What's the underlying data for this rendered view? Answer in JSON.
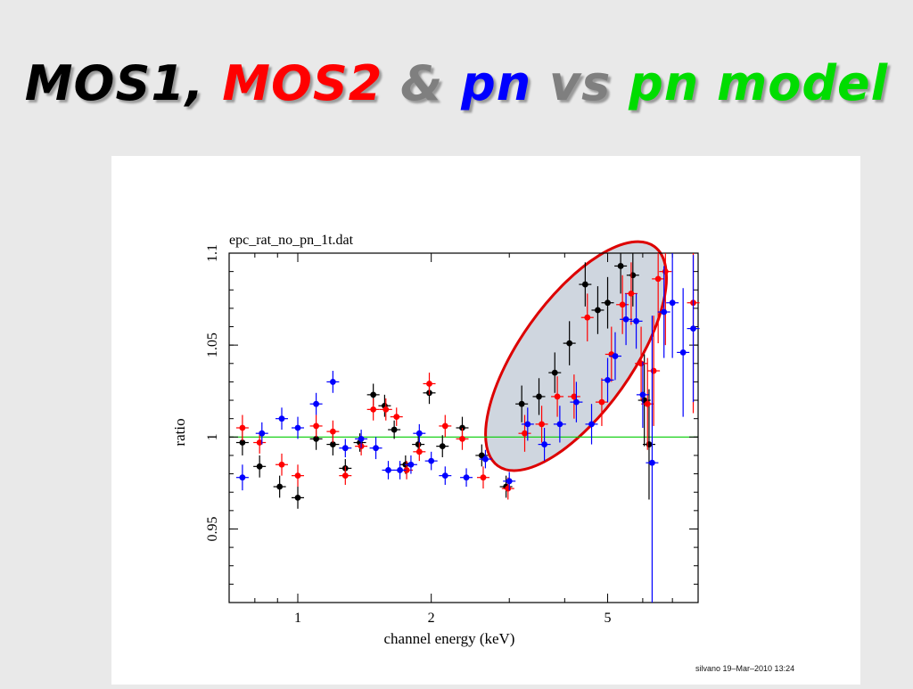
{
  "slide": {
    "title_parts": [
      {
        "text": "MOS1,",
        "color": "#000000"
      },
      {
        "text": "MOS2",
        "color": "#ff0000"
      },
      {
        "text": "&",
        "color": "#7f7f7f"
      },
      {
        "text": "pn",
        "color": "#0000ff"
      },
      {
        "text": "vs",
        "color": "#7f7f7f"
      },
      {
        "text": "pn model",
        "color": "#00dd00"
      }
    ],
    "credit": "silvano 19–Mar–2010 13:24"
  },
  "chart_data": {
    "type": "scatter",
    "title": "epc_rat_no_pn_1t.dat",
    "xlabel": "channel energy (keV)",
    "ylabel": "ratio",
    "xscale": "log",
    "xlim": [
      0.7,
      8.0
    ],
    "ylim": [
      0.91,
      1.1
    ],
    "xticks": [
      1,
      2,
      5
    ],
    "xtick_labels": [
      "1",
      "2",
      "5"
    ],
    "yticks": [
      0.95,
      1.0,
      1.05,
      1.1
    ],
    "ytick_labels": [
      "0.95",
      "1",
      "1.05",
      "1.1"
    ],
    "reference_line": {
      "y": 1.0,
      "color": "#00cc00"
    },
    "highlight": {
      "shape": "ellipse",
      "region_x": [
        3.0,
        6.0
      ],
      "region_y": [
        0.993,
        1.095
      ],
      "fill": "#cfd6df",
      "stroke": "#dd0000"
    },
    "series": [
      {
        "color": "#000000",
        "points": [
          {
            "x": 0.75,
            "y": 0.997,
            "yerr": 0.007
          },
          {
            "x": 0.82,
            "y": 0.984,
            "yerr": 0.006
          },
          {
            "x": 0.91,
            "y": 0.973,
            "yerr": 0.006
          },
          {
            "x": 1.0,
            "y": 0.967,
            "yerr": 0.006
          },
          {
            "x": 1.1,
            "y": 0.999,
            "yerr": 0.006
          },
          {
            "x": 1.2,
            "y": 0.996,
            "yerr": 0.006
          },
          {
            "x": 1.28,
            "y": 0.983,
            "yerr": 0.005
          },
          {
            "x": 1.38,
            "y": 0.997,
            "yerr": 0.005
          },
          {
            "x": 1.48,
            "y": 1.023,
            "yerr": 0.006
          },
          {
            "x": 1.57,
            "y": 1.017,
            "yerr": 0.006
          },
          {
            "x": 1.65,
            "y": 1.004,
            "yerr": 0.005
          },
          {
            "x": 1.75,
            "y": 0.985,
            "yerr": 0.005
          },
          {
            "x": 1.87,
            "y": 0.996,
            "yerr": 0.005
          },
          {
            "x": 1.98,
            "y": 1.024,
            "yerr": 0.006
          },
          {
            "x": 2.12,
            "y": 0.995,
            "yerr": 0.006
          },
          {
            "x": 2.35,
            "y": 1.005,
            "yerr": 0.006
          },
          {
            "x": 2.6,
            "y": 0.99,
            "yerr": 0.006
          },
          {
            "x": 2.95,
            "y": 0.973,
            "yerr": 0.006
          },
          {
            "x": 3.2,
            "y": 1.018,
            "yerr": 0.01
          },
          {
            "x": 3.5,
            "y": 1.022,
            "yerr": 0.01
          },
          {
            "x": 3.8,
            "y": 1.035,
            "yerr": 0.011
          },
          {
            "x": 4.1,
            "y": 1.051,
            "yerr": 0.012
          },
          {
            "x": 4.45,
            "y": 1.083,
            "yerr": 0.012
          },
          {
            "x": 4.75,
            "y": 1.069,
            "yerr": 0.013
          },
          {
            "x": 5.0,
            "y": 1.073,
            "yerr": 0.014
          },
          {
            "x": 5.35,
            "y": 1.093,
            "yerr": 0.015
          },
          {
            "x": 5.7,
            "y": 1.088,
            "yerr": 0.017
          },
          {
            "x": 6.05,
            "y": 1.02,
            "yerr": 0.025
          },
          {
            "x": 6.2,
            "y": 0.996,
            "yerr": 0.03
          }
        ]
      },
      {
        "color": "#ff0000",
        "points": [
          {
            "x": 0.75,
            "y": 1.005,
            "yerr": 0.007
          },
          {
            "x": 0.82,
            "y": 0.997,
            "yerr": 0.006
          },
          {
            "x": 0.92,
            "y": 0.985,
            "yerr": 0.006
          },
          {
            "x": 1.0,
            "y": 0.979,
            "yerr": 0.006
          },
          {
            "x": 1.1,
            "y": 1.006,
            "yerr": 0.006
          },
          {
            "x": 1.2,
            "y": 1.003,
            "yerr": 0.006
          },
          {
            "x": 1.28,
            "y": 0.979,
            "yerr": 0.005
          },
          {
            "x": 1.39,
            "y": 0.995,
            "yerr": 0.005
          },
          {
            "x": 1.48,
            "y": 1.015,
            "yerr": 0.006
          },
          {
            "x": 1.58,
            "y": 1.015,
            "yerr": 0.006
          },
          {
            "x": 1.67,
            "y": 1.011,
            "yerr": 0.005
          },
          {
            "x": 1.76,
            "y": 0.982,
            "yerr": 0.005
          },
          {
            "x": 1.88,
            "y": 0.992,
            "yerr": 0.005
          },
          {
            "x": 1.98,
            "y": 1.029,
            "yerr": 0.006
          },
          {
            "x": 2.15,
            "y": 1.006,
            "yerr": 0.006
          },
          {
            "x": 2.35,
            "y": 0.999,
            "yerr": 0.006
          },
          {
            "x": 2.62,
            "y": 0.978,
            "yerr": 0.006
          },
          {
            "x": 2.98,
            "y": 0.972,
            "yerr": 0.006
          },
          {
            "x": 3.25,
            "y": 1.002,
            "yerr": 0.01
          },
          {
            "x": 3.55,
            "y": 1.007,
            "yerr": 0.01
          },
          {
            "x": 3.85,
            "y": 1.022,
            "yerr": 0.011
          },
          {
            "x": 4.2,
            "y": 1.022,
            "yerr": 0.012
          },
          {
            "x": 4.5,
            "y": 1.065,
            "yerr": 0.013
          },
          {
            "x": 4.85,
            "y": 1.019,
            "yerr": 0.013
          },
          {
            "x": 5.1,
            "y": 1.045,
            "yerr": 0.015
          },
          {
            "x": 5.4,
            "y": 1.072,
            "yerr": 0.016
          },
          {
            "x": 5.65,
            "y": 1.078,
            "yerr": 0.017
          },
          {
            "x": 5.95,
            "y": 1.04,
            "yerr": 0.02
          },
          {
            "x": 6.15,
            "y": 1.018,
            "yerr": 0.025
          },
          {
            "x": 6.35,
            "y": 1.036,
            "yerr": 0.03
          },
          {
            "x": 6.5,
            "y": 1.086,
            "yerr": 0.035
          },
          {
            "x": 6.75,
            "y": 1.09,
            "yerr": 0.04
          },
          {
            "x": 7.8,
            "y": 1.073,
            "yerr": 0.06
          }
        ]
      },
      {
        "color": "#0000ff",
        "points": [
          {
            "x": 0.75,
            "y": 0.978,
            "yerr": 0.007
          },
          {
            "x": 0.83,
            "y": 1.002,
            "yerr": 0.006
          },
          {
            "x": 0.92,
            "y": 1.01,
            "yerr": 0.006
          },
          {
            "x": 1.0,
            "y": 1.005,
            "yerr": 0.006
          },
          {
            "x": 1.1,
            "y": 1.018,
            "yerr": 0.006
          },
          {
            "x": 1.2,
            "y": 1.03,
            "yerr": 0.006
          },
          {
            "x": 1.28,
            "y": 0.994,
            "yerr": 0.005
          },
          {
            "x": 1.39,
            "y": 0.999,
            "yerr": 0.005
          },
          {
            "x": 1.5,
            "y": 0.994,
            "yerr": 0.006
          },
          {
            "x": 1.6,
            "y": 0.982,
            "yerr": 0.005
          },
          {
            "x": 1.7,
            "y": 0.982,
            "yerr": 0.005
          },
          {
            "x": 1.8,
            "y": 0.985,
            "yerr": 0.005
          },
          {
            "x": 1.88,
            "y": 1.002,
            "yerr": 0.005
          },
          {
            "x": 2.0,
            "y": 0.987,
            "yerr": 0.005
          },
          {
            "x": 2.15,
            "y": 0.979,
            "yerr": 0.005
          },
          {
            "x": 2.4,
            "y": 0.978,
            "yerr": 0.005
          },
          {
            "x": 2.65,
            "y": 0.988,
            "yerr": 0.005
          },
          {
            "x": 3.0,
            "y": 0.976,
            "yerr": 0.005
          },
          {
            "x": 3.3,
            "y": 1.007,
            "yerr": 0.009
          },
          {
            "x": 3.6,
            "y": 0.996,
            "yerr": 0.009
          },
          {
            "x": 3.9,
            "y": 1.007,
            "yerr": 0.01
          },
          {
            "x": 4.25,
            "y": 1.019,
            "yerr": 0.011
          },
          {
            "x": 4.6,
            "y": 1.007,
            "yerr": 0.011
          },
          {
            "x": 5.0,
            "y": 1.031,
            "yerr": 0.012
          },
          {
            "x": 5.2,
            "y": 1.044,
            "yerr": 0.013
          },
          {
            "x": 5.5,
            "y": 1.064,
            "yerr": 0.014
          },
          {
            "x": 5.8,
            "y": 1.063,
            "yerr": 0.015
          },
          {
            "x": 6.0,
            "y": 1.023,
            "yerr": 0.018
          },
          {
            "x": 6.3,
            "y": 0.986,
            "yerr": 0.08
          },
          {
            "x": 6.7,
            "y": 1.068,
            "yerr": 0.025
          },
          {
            "x": 7.0,
            "y": 1.073,
            "yerr": 0.03
          },
          {
            "x": 7.4,
            "y": 1.046,
            "yerr": 0.035
          },
          {
            "x": 7.8,
            "y": 1.059,
            "yerr": 0.04
          }
        ]
      }
    ]
  }
}
